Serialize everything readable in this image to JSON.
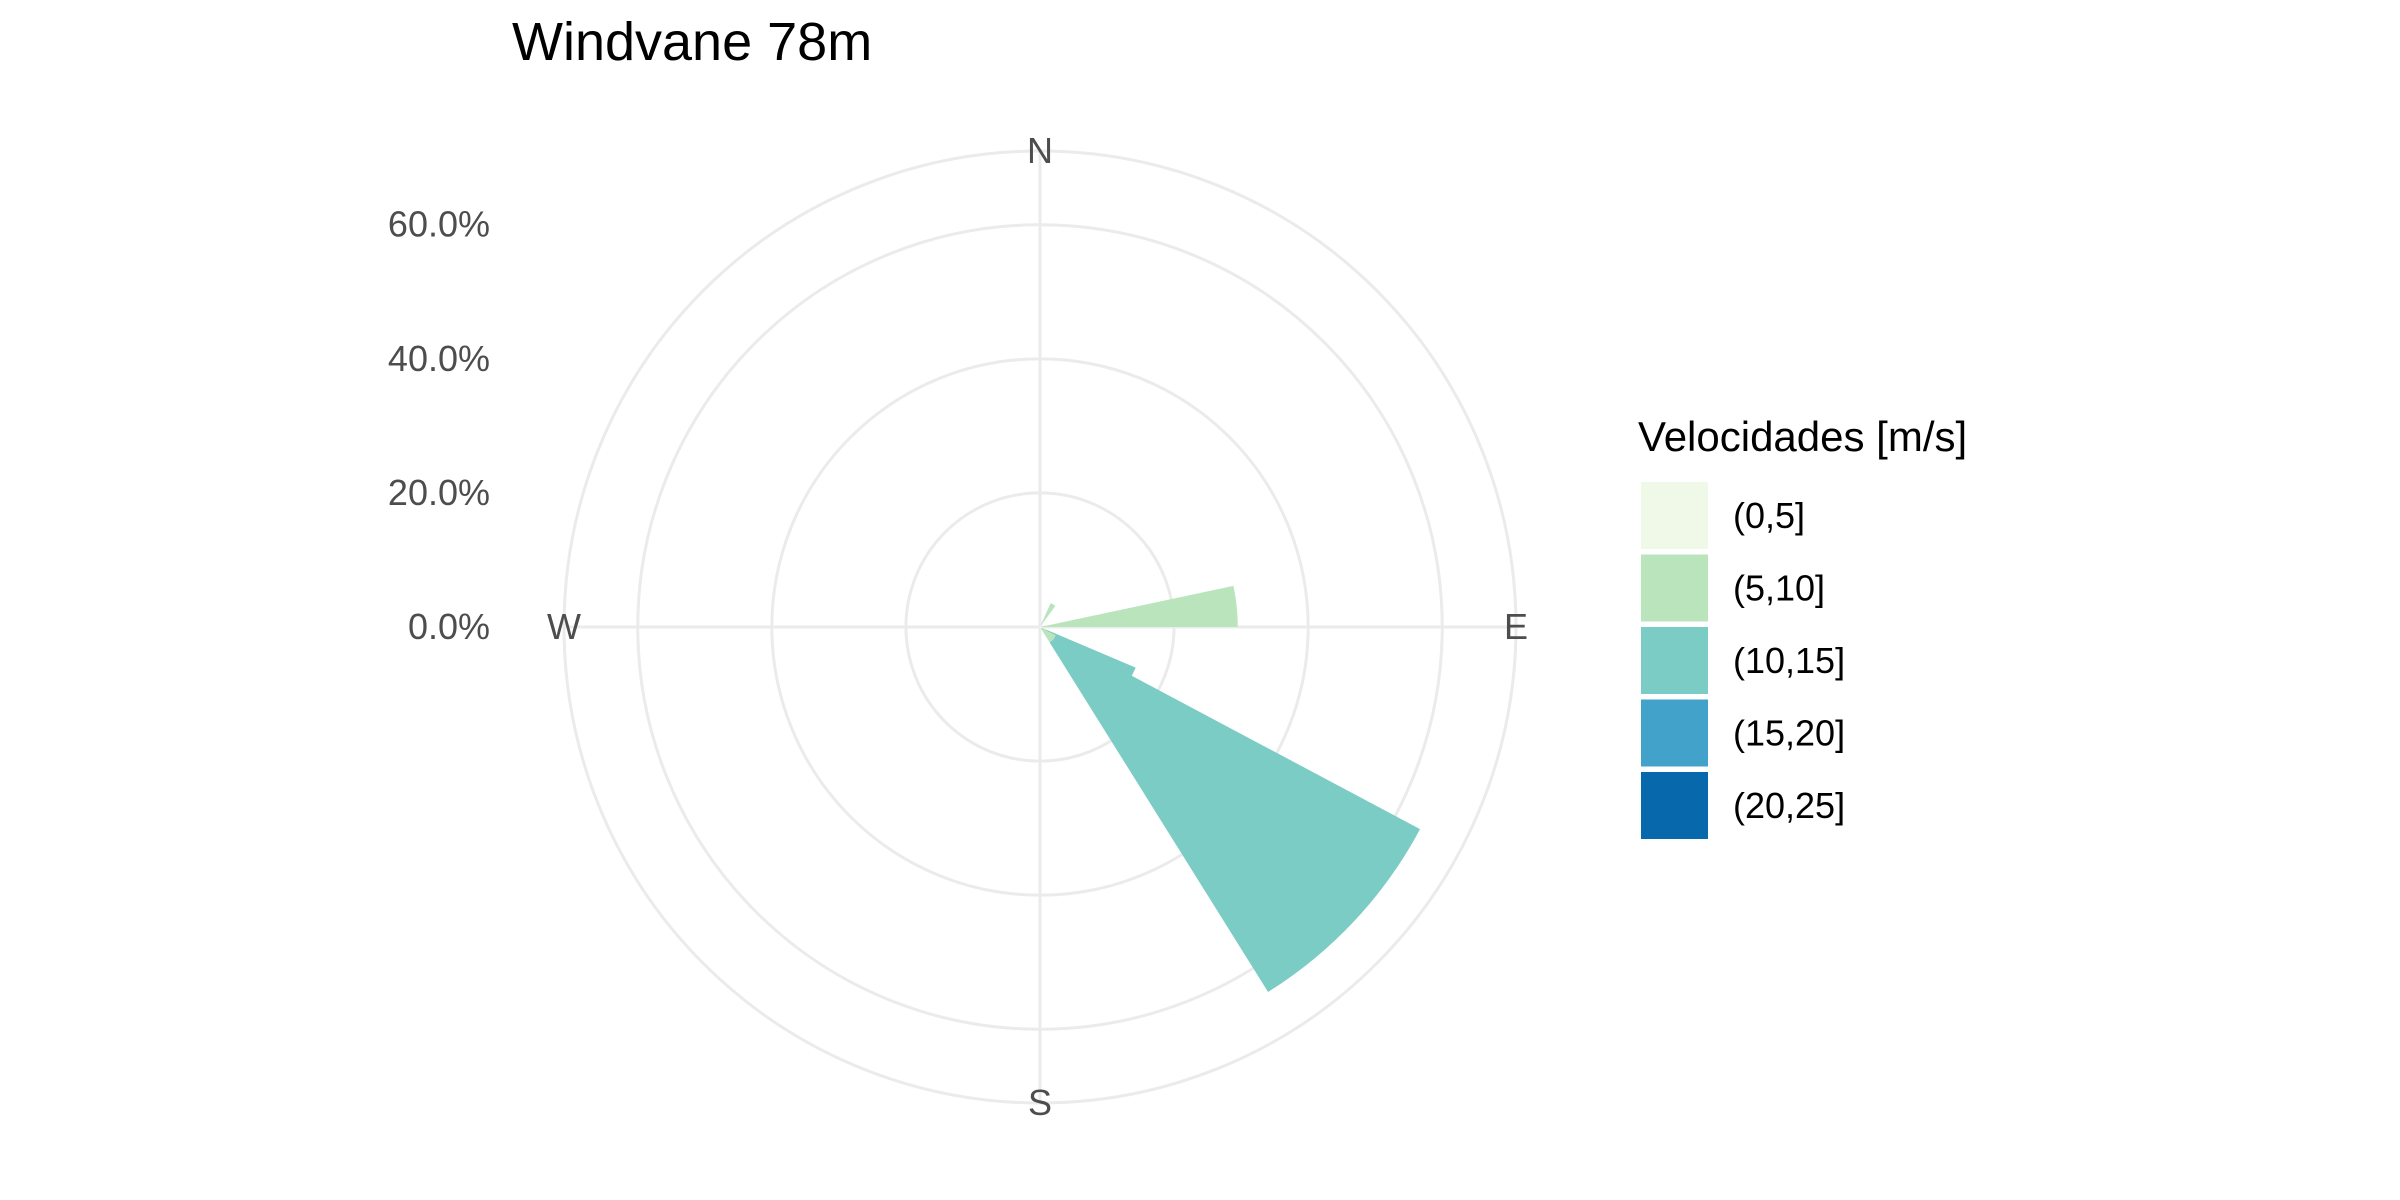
{
  "chart_data": {
    "type": "wind-rose",
    "title": "Windvane 78m",
    "directions": [
      "N",
      "E",
      "S",
      "W"
    ],
    "radial_ticks": [
      "0.0%",
      "20.0%",
      "40.0%",
      "60.0%"
    ],
    "radial_max": 71,
    "grid": true,
    "legend": {
      "title": "Velocidades [m/s]",
      "placement": "right",
      "entries": [
        {
          "label": "(0,5]",
          "color": "#f0f9e8"
        },
        {
          "label": "(5,10]",
          "color": "#bae4bc"
        },
        {
          "label": "(10,15]",
          "color": "#7bccc4"
        },
        {
          "label": "(15,20]",
          "color": "#43a2ca"
        },
        {
          "label": "(20,25]",
          "color": "#0868ac"
        }
      ]
    },
    "sectors": [
      {
        "direction_deg": 30,
        "width_deg": 12,
        "stack": [
          0.3,
          3.6,
          0,
          0,
          0
        ]
      },
      {
        "direction_deg": 84,
        "width_deg": 12,
        "stack": [
          0.3,
          29.2,
          0,
          0,
          0
        ]
      },
      {
        "direction_deg": 120,
        "width_deg": 14,
        "stack": [
          0.4,
          0.6,
          14.5,
          0,
          0
        ]
      },
      {
        "direction_deg": 133,
        "width_deg": 30,
        "stack": [
          0.3,
          2.4,
          61.5,
          0,
          0
        ]
      }
    ],
    "sector_layers": [
      {
        "layer": "(0,5]"
      }
    ]
  }
}
